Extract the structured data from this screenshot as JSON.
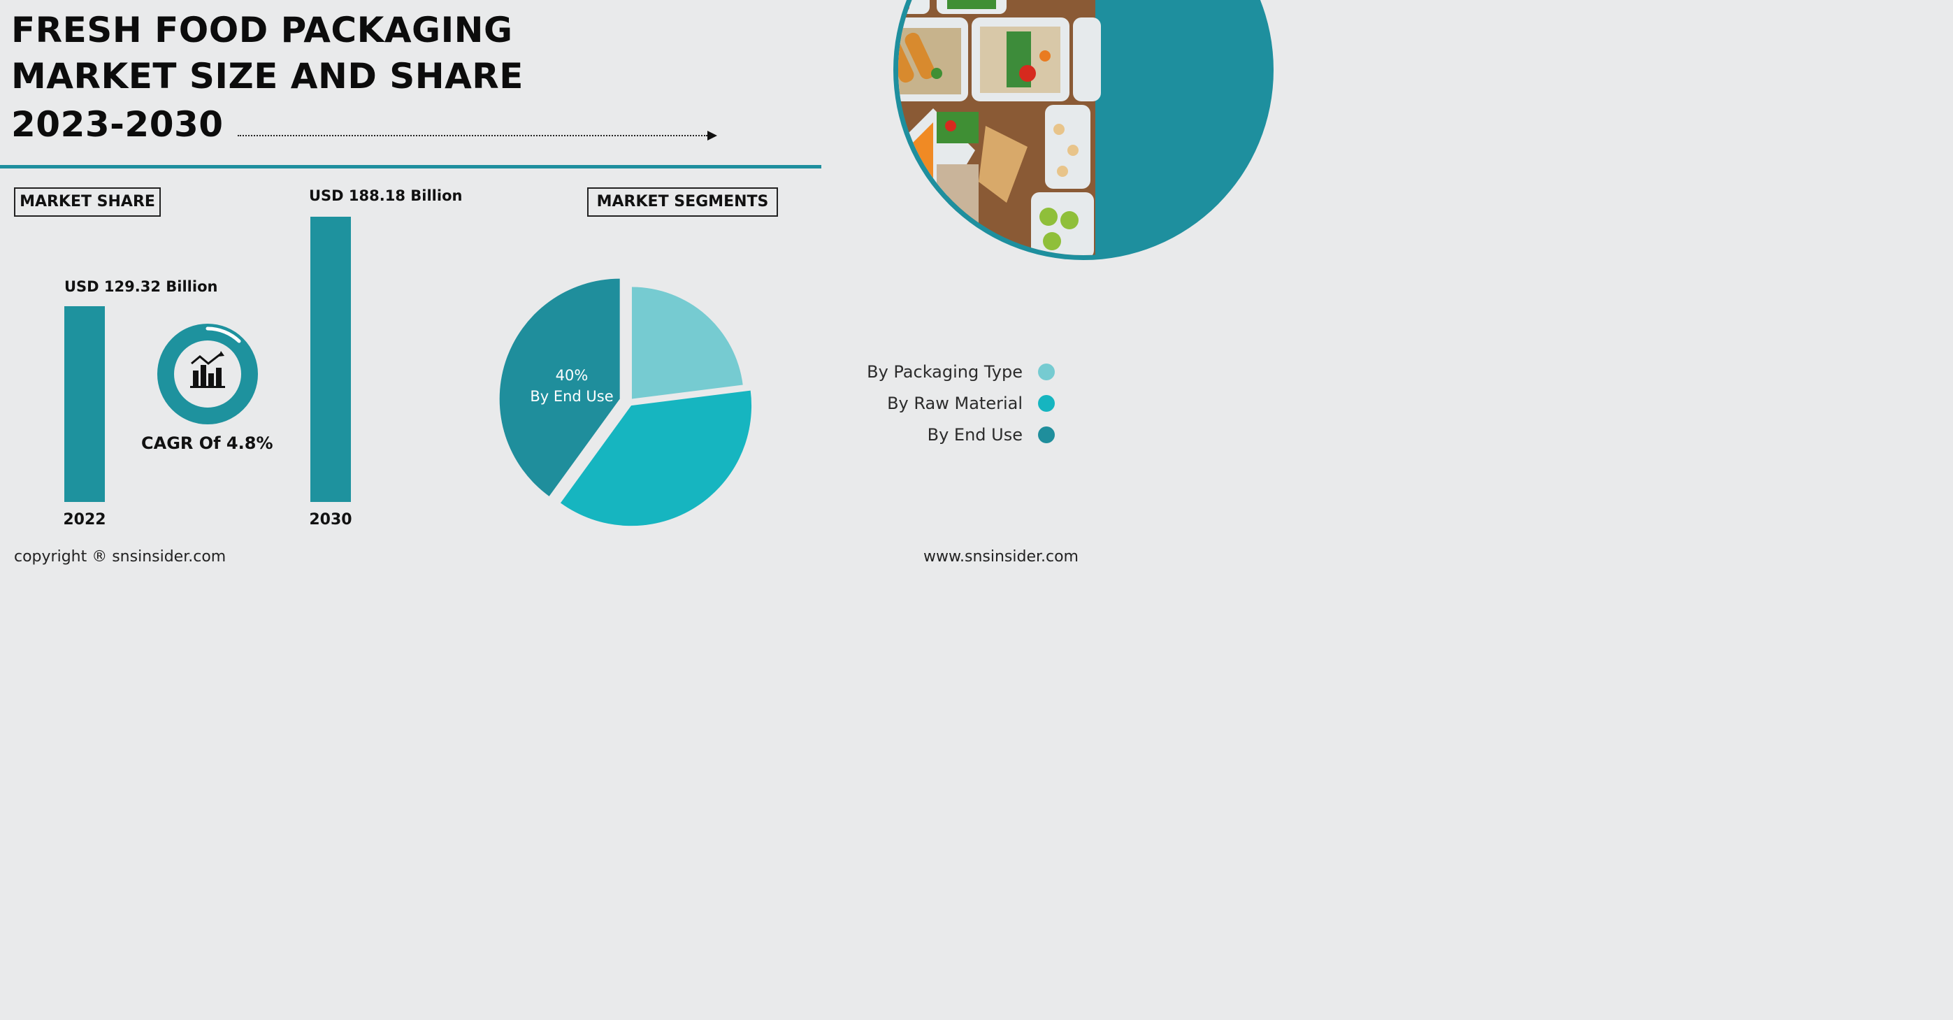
{
  "header": {
    "title_lines": [
      "FRESH FOOD PACKAGING",
      "MARKET SIZE AND SHARE",
      "2023-2030"
    ]
  },
  "sections": {
    "market_share": "MARKET SHARE",
    "market_segments": "MARKET SEGMENTS"
  },
  "cagr": {
    "text": "CAGR Of 4.8%"
  },
  "pie_label": {
    "percent": "40%",
    "segment": "By End Use"
  },
  "footer": {
    "copyright": "copyright ® snsinsider.com",
    "website": "www.snsinsider.com"
  },
  "colors": {
    "accent": "#1e929e",
    "packaging_type": "#76cbd1",
    "raw_material": "#16b5c0",
    "end_use": "#1f8e9c",
    "background": "#e9eaeb"
  },
  "chart_data": [
    {
      "type": "bar",
      "title": "MARKET SHARE",
      "categories": [
        "2022",
        "2030"
      ],
      "values": [
        129.32,
        188.18
      ],
      "data_labels": [
        "USD 129.32 Billion",
        "USD 188.18 Billion"
      ],
      "unit": "USD Billion",
      "ylim": [
        0,
        188.18
      ]
    },
    {
      "type": "pie",
      "title": "MARKET SEGMENTS",
      "labels": [
        "By Packaging Type",
        "By Raw Material",
        "By End Use"
      ],
      "values": [
        23,
        37,
        40
      ],
      "annotations": [
        "40% By End Use"
      ]
    }
  ]
}
